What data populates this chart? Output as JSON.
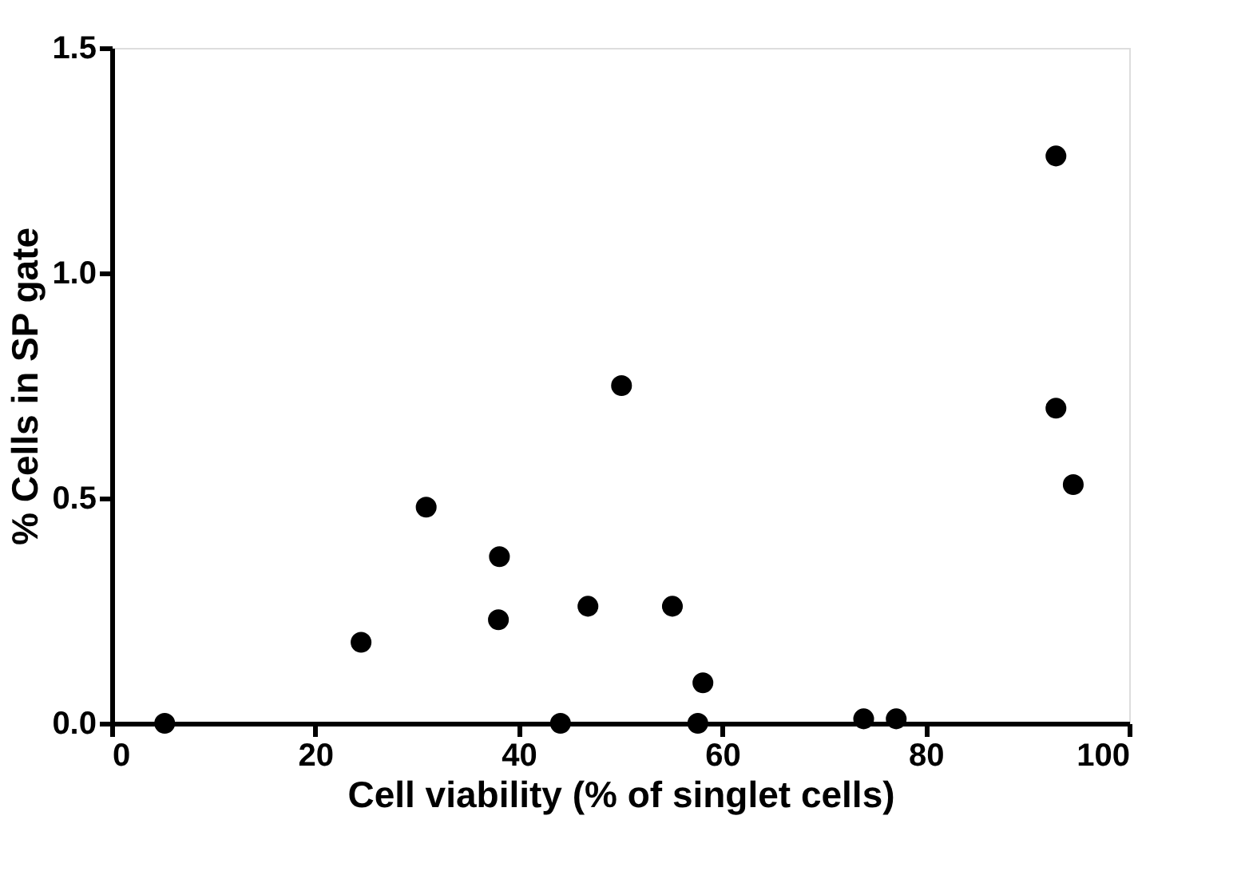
{
  "chart_data": {
    "type": "scatter",
    "xlabel": "Cell viability (% of singlet cells)",
    "ylabel": "% Cells in SP gate",
    "x": [
      5.2,
      24.5,
      30.9,
      38.1,
      38.0,
      44.1,
      46.8,
      50.1,
      55.1,
      57.6,
      58.1,
      73.9,
      77.1,
      92.8,
      92.8,
      94.5
    ],
    "series": [
      {
        "color": "#000000",
        "values": [
          0,
          0.18,
          0.48,
          0.37,
          0.23,
          0,
          0.26,
          0.75,
          0.26,
          0,
          0.09,
          0.01,
          0.01,
          1.26,
          0.7,
          0.53
        ]
      }
    ],
    "xlim": [
      0,
      100
    ],
    "ylim": [
      0,
      1.5
    ],
    "xticks": [
      0,
      20,
      40,
      60,
      80,
      100
    ],
    "yticks": [
      {
        "value": 0,
        "label": "0.0"
      },
      {
        "value": 0.5,
        "label": "0.5"
      },
      {
        "value": 1.0,
        "label": "1.0"
      },
      {
        "value": 1.5,
        "label": "1.5"
      }
    ],
    "grid": false,
    "marker": "circle"
  }
}
